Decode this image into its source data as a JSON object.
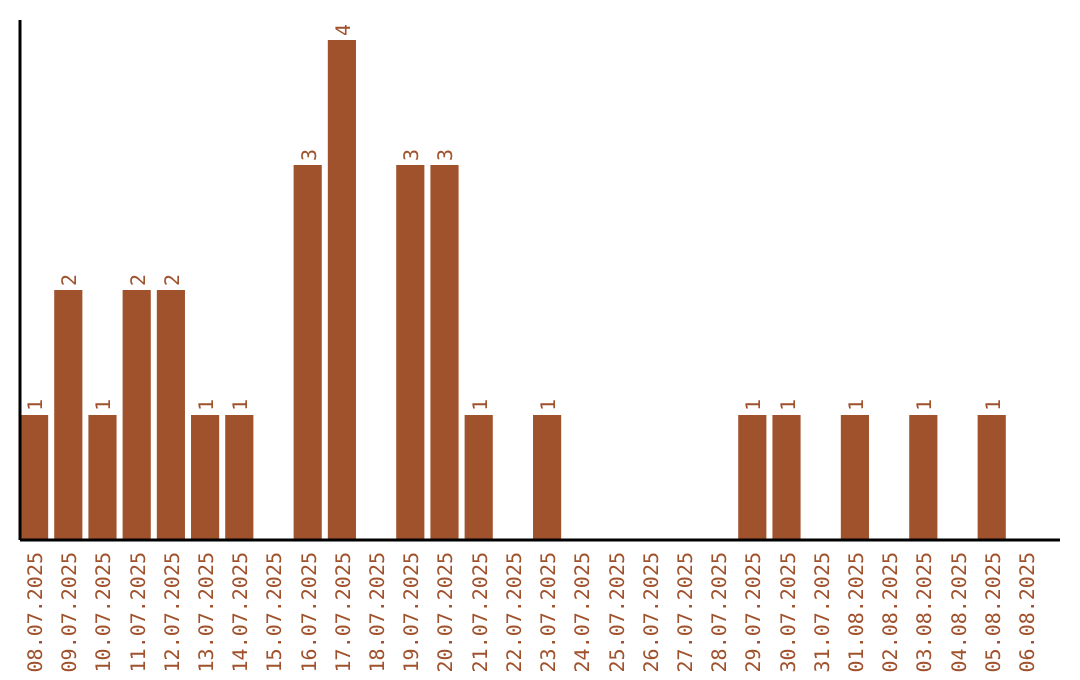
{
  "chart_data": {
    "type": "bar",
    "categories": [
      "08.07.2025",
      "09.07.2025",
      "10.07.2025",
      "11.07.2025",
      "12.07.2025",
      "13.07.2025",
      "14.07.2025",
      "15.07.2025",
      "16.07.2025",
      "17.07.2025",
      "18.07.2025",
      "19.07.2025",
      "20.07.2025",
      "21.07.2025",
      "22.07.2025",
      "23.07.2025",
      "24.07.2025",
      "25.07.2025",
      "26.07.2025",
      "27.07.2025",
      "28.07.2025",
      "29.07.2025",
      "30.07.2025",
      "31.07.2025",
      "01.08.2025",
      "02.08.2025",
      "03.08.2025",
      "04.08.2025",
      "05.08.2025",
      "06.08.2025"
    ],
    "values": [
      1,
      2,
      1,
      2,
      2,
      1,
      1,
      0,
      3,
      4,
      0,
      3,
      3,
      1,
      0,
      1,
      0,
      0,
      0,
      0,
      0,
      1,
      1,
      0,
      1,
      0,
      1,
      0,
      1,
      0
    ],
    "value_labels": [
      "1",
      "2",
      "1",
      "2",
      "2",
      "1",
      "1",
      null,
      "3",
      "4",
      null,
      "3",
      "3",
      "1",
      null,
      "1",
      null,
      null,
      null,
      null,
      null,
      "1",
      "1",
      null,
      "1",
      null,
      "1",
      null,
      "1",
      null
    ],
    "color": "#a0522d",
    "tick_labels": "x"
  }
}
